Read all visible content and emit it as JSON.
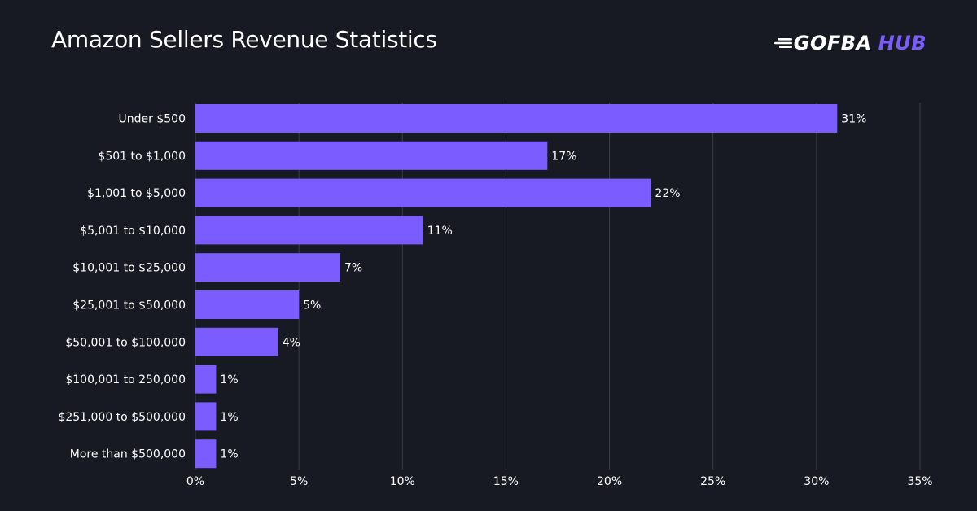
{
  "header": {
    "title": "Amazon Sellers Revenue Statistics",
    "logo_primary": "GOFBA",
    "logo_secondary": "HUB"
  },
  "colors": {
    "background": "#181a23",
    "bar": "#7b5cff",
    "grid": "#3a3d49",
    "text": "#ffffff",
    "accent": "#7b5cff"
  },
  "chart_data": {
    "type": "bar",
    "orientation": "horizontal",
    "title": "Amazon Sellers Revenue Statistics",
    "categories": [
      "Under $500",
      "$501 to $1,000",
      "$1,001 to $5,000",
      "$5,001 to $10,000",
      "$10,001 to $25,000",
      "$25,001 to $50,000",
      "$50,001 to $100,000",
      "$100,001 to 250,000",
      "$251,000 to $500,000",
      "More than $500,000"
    ],
    "values": [
      31,
      17,
      22,
      11,
      7,
      5,
      4,
      1,
      1,
      1
    ],
    "data_labels": [
      "31%",
      "17%",
      "22%",
      "11%",
      "7%",
      "5%",
      "4%",
      "1%",
      "1%",
      "1%"
    ],
    "xlim": [
      0,
      35
    ],
    "xticks": [
      0,
      5,
      10,
      15,
      20,
      25,
      30,
      35
    ],
    "xtick_labels": [
      "0%",
      "5%",
      "10%",
      "15%",
      "20%",
      "25%",
      "30%",
      "35%"
    ],
    "xlabel": "",
    "ylabel": "",
    "grid": "vertical"
  }
}
